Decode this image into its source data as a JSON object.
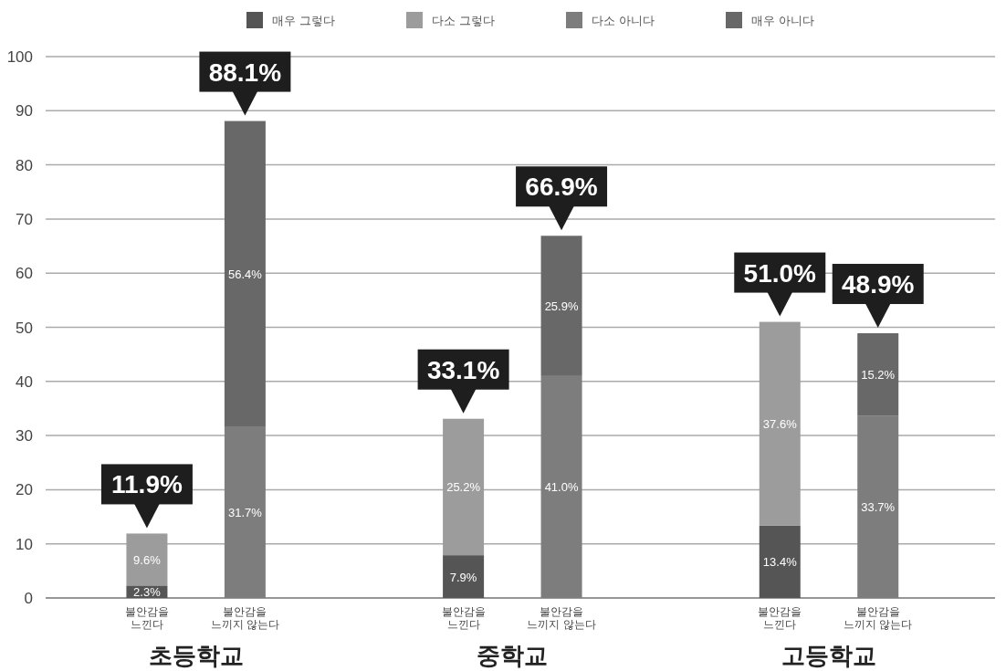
{
  "chart_data": {
    "type": "bar",
    "stacked": true,
    "categories": [
      "불안감을 느낀다",
      "불안감을 느끼지 않는다",
      "불안감을 느낀다",
      "불안감을 느끼지 않는다",
      "불안감을 느낀다",
      "불안감을 느끼지 않는다"
    ],
    "series": [
      {
        "name": "매우 그렇다",
        "color": "#555555",
        "values": [
          2.3,
          null,
          7.9,
          null,
          13.4,
          null
        ],
        "value_labels": [
          "2.3%",
          null,
          "7.9%",
          null,
          "13.4%",
          null
        ]
      },
      {
        "name": "다소 그렇다",
        "color": "#9c9c9c",
        "values": [
          9.6,
          null,
          25.2,
          null,
          37.6,
          null
        ],
        "value_labels": [
          "9.6%",
          null,
          "25.2%",
          null,
          "37.6%",
          null
        ]
      },
      {
        "name": "다소 아니다",
        "color": "#7d7d7d",
        "values": [
          null,
          31.7,
          null,
          41.0,
          null,
          33.7
        ],
        "value_labels": [
          null,
          "31.7%",
          null,
          "41.0%",
          null,
          "33.7%"
        ]
      },
      {
        "name": "매우 아니다",
        "color": "#686868",
        "values": [
          null,
          56.4,
          null,
          25.9,
          null,
          15.2
        ],
        "value_labels": [
          null,
          "56.4%",
          null,
          "25.9%",
          null,
          "15.2%"
        ]
      }
    ],
    "totals": [
      "11.9%",
      "88.1%",
      "33.1%",
      "66.9%",
      "51.0%",
      "48.9%"
    ],
    "annotations": [
      "초등학교",
      "중학교",
      "고등학교"
    ],
    "ylim": [
      0,
      100
    ],
    "yticks": [
      0,
      10,
      20,
      30,
      40,
      50,
      60,
      70,
      80,
      90,
      100
    ],
    "grid": "y",
    "legend": "top"
  }
}
